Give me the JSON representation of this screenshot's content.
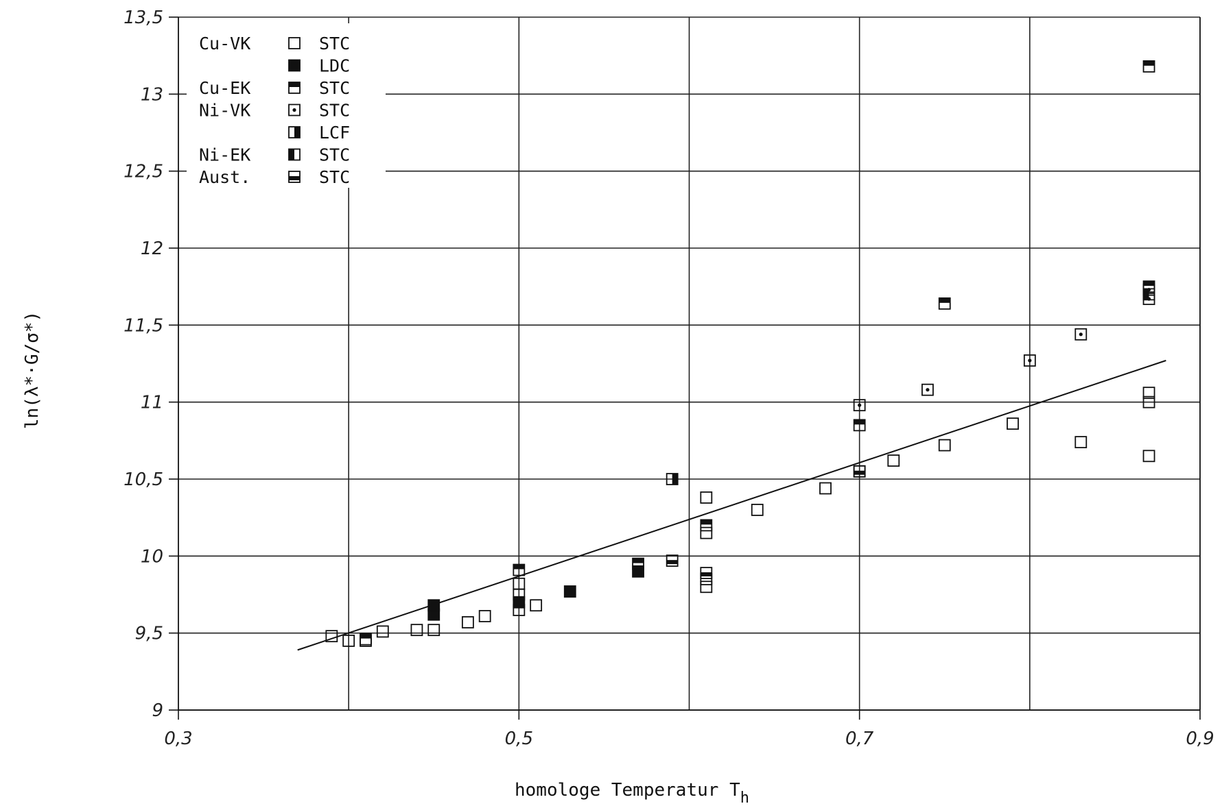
{
  "chart_data": {
    "type": "scatter",
    "title": "",
    "xlabel": "homologe Temperatur T",
    "xlabel_sub": "h",
    "ylabel": "ln(λ*·G/σ*)",
    "xlim": [
      0.3,
      0.9
    ],
    "ylim": [
      9,
      13.5
    ],
    "x_ticks": [
      0.3,
      0.5,
      0.7,
      0.9
    ],
    "x_tick_labels": [
      "0,3",
      "0,5",
      "0,7",
      "0,9"
    ],
    "y_ticks": [
      9,
      9.5,
      10,
      10.5,
      11,
      11.5,
      12,
      12.5,
      13,
      13.5
    ],
    "y_tick_labels": [
      "9",
      "9,5",
      "10",
      "10,5",
      "11",
      "11,5",
      "12",
      "12,5",
      "13",
      "13,5"
    ],
    "x_grid": [
      0.4,
      0.5,
      0.6,
      0.7,
      0.8
    ],
    "grid": true,
    "legend_position": "top-left",
    "legend": [
      {
        "material": "Cu-VK",
        "test": "STC",
        "marker": "open"
      },
      {
        "material": "",
        "test": "LDC",
        "marker": "filled"
      },
      {
        "material": "Cu-EK",
        "test": "STC",
        "marker": "top-filled"
      },
      {
        "material": "Ni-VK",
        "test": "STC",
        "marker": "dot"
      },
      {
        "material": "",
        "test": "LCF",
        "marker": "right-filled"
      },
      {
        "material": "Ni-EK",
        "test": "STC",
        "marker": "left-filled"
      },
      {
        "material": "Aust.",
        "test": "STC",
        "marker": "mid-filled"
      }
    ],
    "fit_line": {
      "x": [
        0.37,
        0.88
      ],
      "y": [
        9.39,
        11.27
      ]
    },
    "series": [
      {
        "name": "Cu-VK STC",
        "marker": "open",
        "points": [
          [
            0.39,
            9.48
          ],
          [
            0.4,
            9.45
          ],
          [
            0.41,
            9.45
          ],
          [
            0.42,
            9.51
          ],
          [
            0.44,
            9.52
          ],
          [
            0.45,
            9.52
          ],
          [
            0.47,
            9.57
          ],
          [
            0.48,
            9.61
          ],
          [
            0.5,
            9.65
          ],
          [
            0.5,
            9.75
          ],
          [
            0.5,
            9.82
          ],
          [
            0.51,
            9.68
          ],
          [
            0.61,
            10.38
          ],
          [
            0.61,
            10.15
          ],
          [
            0.61,
            9.8
          ],
          [
            0.61,
            9.85
          ],
          [
            0.64,
            10.3
          ],
          [
            0.68,
            10.44
          ],
          [
            0.7,
            10.55
          ],
          [
            0.72,
            10.62
          ],
          [
            0.75,
            10.72
          ],
          [
            0.79,
            10.86
          ],
          [
            0.83,
            10.74
          ],
          [
            0.87,
            11.06
          ],
          [
            0.87,
            11.0
          ],
          [
            0.87,
            10.65
          ]
        ]
      },
      {
        "name": "Cu-VK LDC",
        "marker": "filled",
        "points": [
          [
            0.45,
            9.62
          ],
          [
            0.45,
            9.68
          ],
          [
            0.5,
            9.7
          ],
          [
            0.53,
            9.77
          ],
          [
            0.57,
            9.9
          ]
        ]
      },
      {
        "name": "Cu-EK STC",
        "marker": "top-filled",
        "points": [
          [
            0.41,
            9.46
          ],
          [
            0.5,
            9.91
          ],
          [
            0.57,
            9.95
          ],
          [
            0.61,
            10.2
          ],
          [
            0.7,
            10.85
          ],
          [
            0.75,
            11.64
          ],
          [
            0.87,
            13.18
          ],
          [
            0.87,
            11.75
          ]
        ]
      },
      {
        "name": "Ni-VK STC",
        "marker": "dot",
        "points": [
          [
            0.7,
            10.98
          ],
          [
            0.74,
            11.08
          ],
          [
            0.8,
            11.27
          ],
          [
            0.83,
            11.44
          ],
          [
            0.87,
            11.67
          ],
          [
            0.87,
            11.73
          ]
        ]
      },
      {
        "name": "Ni-VK LCF",
        "marker": "right-filled",
        "points": [
          [
            0.59,
            10.5
          ]
        ]
      },
      {
        "name": "Ni-EK STC",
        "marker": "left-filled",
        "points": [
          [
            0.87,
            11.7
          ]
        ]
      },
      {
        "name": "Aust. STC",
        "marker": "mid-filled",
        "points": [
          [
            0.59,
            9.97
          ],
          [
            0.61,
            9.89
          ],
          [
            0.7,
            10.55
          ]
        ]
      }
    ]
  }
}
